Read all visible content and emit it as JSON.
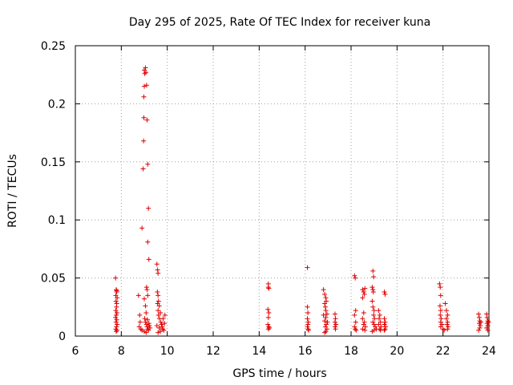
{
  "chart_data": {
    "type": "scatter",
    "title": "Day 295 of 2025, Rate Of TEC Index for receiver kuna",
    "xlabel": "GPS time / hours",
    "ylabel": "ROTI / TECUs",
    "xlim": [
      6,
      24
    ],
    "ylim": [
      0,
      0.25
    ],
    "xticks": [
      6,
      8,
      10,
      12,
      14,
      16,
      18,
      20,
      22,
      24
    ],
    "xtick_labels": [
      "6",
      "8",
      "10",
      "12",
      "14",
      "16",
      "18",
      "20",
      "22",
      "24"
    ],
    "yticks": [
      0,
      0.05,
      0.1,
      0.15,
      0.2,
      0.25
    ],
    "ytick_labels": [
      "0",
      "0.05",
      "0.1",
      "0.15",
      "0.2",
      "0.25"
    ],
    "grid": true,
    "marker": "plus",
    "color": "#e00000",
    "series": [
      {
        "points": [
          [
            7.75,
            0.05
          ],
          [
            7.78,
            0.04
          ],
          [
            7.8,
            0.038
          ],
          [
            7.76,
            0.035
          ],
          [
            7.82,
            0.033
          ],
          [
            7.77,
            0.03
          ],
          [
            7.8,
            0.028
          ],
          [
            7.79,
            0.025
          ],
          [
            7.76,
            0.022
          ],
          [
            7.81,
            0.02
          ],
          [
            7.78,
            0.018
          ],
          [
            7.75,
            0.016
          ],
          [
            7.8,
            0.014
          ],
          [
            7.77,
            0.012
          ],
          [
            7.82,
            0.01
          ],
          [
            7.79,
            0.008
          ],
          [
            7.76,
            0.006
          ],
          [
            7.81,
            0.005
          ],
          [
            7.78,
            0.004
          ],
          [
            7.8,
            0.039
          ],
          [
            8.75,
            0.035
          ],
          [
            8.8,
            0.018
          ],
          [
            8.82,
            0.012
          ],
          [
            8.78,
            0.008
          ],
          [
            8.85,
            0.006
          ],
          [
            8.9,
            0.005
          ],
          [
            8.9,
            0.093
          ],
          [
            8.95,
            0.144
          ],
          [
            8.97,
            0.168
          ],
          [
            8.98,
            0.188
          ],
          [
            8.98,
            0.206
          ],
          [
            9.0,
            0.215
          ],
          [
            9.02,
            0.226
          ],
          [
            9.0,
            0.229
          ],
          [
            9.05,
            0.231
          ],
          [
            9.07,
            0.227
          ],
          [
            9.1,
            0.216
          ],
          [
            9.12,
            0.186
          ],
          [
            9.15,
            0.148
          ],
          [
            9.18,
            0.11
          ],
          [
            9.15,
            0.081
          ],
          [
            9.2,
            0.066
          ],
          [
            9.0,
            0.032
          ],
          [
            9.05,
            0.026
          ],
          [
            9.08,
            0.02
          ],
          [
            9.1,
            0.042
          ],
          [
            9.12,
            0.04
          ],
          [
            9.15,
            0.035
          ],
          [
            9.02,
            0.015
          ],
          [
            9.05,
            0.012
          ],
          [
            9.1,
            0.01
          ],
          [
            9.12,
            0.008
          ],
          [
            9.15,
            0.006
          ],
          [
            9.18,
            0.005
          ],
          [
            9.2,
            0.011
          ],
          [
            9.22,
            0.009
          ],
          [
            9.25,
            0.007
          ],
          [
            9.0,
            0.004
          ],
          [
            9.08,
            0.003
          ],
          [
            9.14,
            0.014
          ],
          [
            9.55,
            0.062
          ],
          [
            9.58,
            0.057
          ],
          [
            9.6,
            0.054
          ],
          [
            9.57,
            0.038
          ],
          [
            9.6,
            0.035
          ],
          [
            9.62,
            0.03
          ],
          [
            9.58,
            0.028
          ],
          [
            9.65,
            0.026
          ],
          [
            9.6,
            0.022
          ],
          [
            9.62,
            0.018
          ],
          [
            9.66,
            0.015
          ],
          [
            9.7,
            0.02
          ],
          [
            9.72,
            0.012
          ],
          [
            9.75,
            0.01
          ],
          [
            9.78,
            0.008
          ],
          [
            9.8,
            0.006
          ],
          [
            9.82,
            0.015
          ],
          [
            9.85,
            0.005
          ],
          [
            9.7,
            0.004
          ],
          [
            9.6,
            0.003
          ],
          [
            9.65,
            0.007
          ],
          [
            9.55,
            0.009
          ],
          [
            9.88,
            0.011
          ],
          [
            9.9,
            0.018
          ],
          [
            14.4,
            0.045
          ],
          [
            14.4,
            0.042
          ],
          [
            14.42,
            0.041
          ],
          [
            14.38,
            0.023
          ],
          [
            14.42,
            0.02
          ],
          [
            14.4,
            0.016
          ],
          [
            14.38,
            0.01
          ],
          [
            14.42,
            0.008
          ],
          [
            14.4,
            0.006
          ],
          [
            14.44,
            0.007
          ],
          [
            16.1,
            0.059
          ],
          [
            16.1,
            0.025
          ],
          [
            16.12,
            0.02
          ],
          [
            16.1,
            0.015
          ],
          [
            16.14,
            0.012
          ],
          [
            16.12,
            0.01
          ],
          [
            16.1,
            0.008
          ],
          [
            16.13,
            0.006
          ],
          [
            16.15,
            0.005
          ],
          [
            16.8,
            0.04
          ],
          [
            16.85,
            0.036
          ],
          [
            16.9,
            0.033
          ],
          [
            16.92,
            0.03
          ],
          [
            16.85,
            0.028
          ],
          [
            16.88,
            0.025
          ],
          [
            16.9,
            0.022
          ],
          [
            16.95,
            0.019
          ],
          [
            16.9,
            0.016
          ],
          [
            16.85,
            0.013
          ],
          [
            16.92,
            0.01
          ],
          [
            16.88,
            0.008
          ],
          [
            16.95,
            0.006
          ],
          [
            16.9,
            0.004
          ],
          [
            16.85,
            0.003
          ],
          [
            16.97,
            0.012
          ],
          [
            16.8,
            0.018
          ],
          [
            17.3,
            0.019
          ],
          [
            17.32,
            0.015
          ],
          [
            17.3,
            0.012
          ],
          [
            17.34,
            0.01
          ],
          [
            17.3,
            0.008
          ],
          [
            17.32,
            0.006
          ],
          [
            18.15,
            0.052
          ],
          [
            18.18,
            0.05
          ],
          [
            18.2,
            0.022
          ],
          [
            18.15,
            0.018
          ],
          [
            18.2,
            0.012
          ],
          [
            18.15,
            0.008
          ],
          [
            18.18,
            0.006
          ],
          [
            18.22,
            0.005
          ],
          [
            18.5,
            0.04
          ],
          [
            18.55,
            0.038
          ],
          [
            18.58,
            0.036
          ],
          [
            18.5,
            0.033
          ],
          [
            18.6,
            0.041
          ],
          [
            18.55,
            0.02
          ],
          [
            18.5,
            0.015
          ],
          [
            18.58,
            0.012
          ],
          [
            18.55,
            0.01
          ],
          [
            18.62,
            0.008
          ],
          [
            18.5,
            0.006
          ],
          [
            18.6,
            0.005
          ],
          [
            18.95,
            0.056
          ],
          [
            18.98,
            0.051
          ],
          [
            18.92,
            0.042
          ],
          [
            18.95,
            0.04
          ],
          [
            18.97,
            0.038
          ],
          [
            18.92,
            0.03
          ],
          [
            18.95,
            0.025
          ],
          [
            19.0,
            0.022
          ],
          [
            18.98,
            0.018
          ],
          [
            19.02,
            0.015
          ],
          [
            18.95,
            0.012
          ],
          [
            19.0,
            0.01
          ],
          [
            19.05,
            0.008
          ],
          [
            19.1,
            0.006
          ],
          [
            19.0,
            0.005
          ],
          [
            18.92,
            0.004
          ],
          [
            19.2,
            0.022
          ],
          [
            19.25,
            0.018
          ],
          [
            19.22,
            0.015
          ],
          [
            19.28,
            0.012
          ],
          [
            19.2,
            0.01
          ],
          [
            19.3,
            0.008
          ],
          [
            19.25,
            0.006
          ],
          [
            19.28,
            0.005
          ],
          [
            19.45,
            0.038
          ],
          [
            19.48,
            0.036
          ],
          [
            19.45,
            0.015
          ],
          [
            19.48,
            0.012
          ],
          [
            19.45,
            0.01
          ],
          [
            19.5,
            0.008
          ],
          [
            19.48,
            0.006
          ],
          [
            19.45,
            0.005
          ],
          [
            21.85,
            0.045
          ],
          [
            21.88,
            0.042
          ],
          [
            21.9,
            0.035
          ],
          [
            21.87,
            0.026
          ],
          [
            21.9,
            0.022
          ],
          [
            21.88,
            0.018
          ],
          [
            21.92,
            0.015
          ],
          [
            21.9,
            0.012
          ],
          [
            21.95,
            0.01
          ],
          [
            21.9,
            0.008
          ],
          [
            22.0,
            0.006
          ],
          [
            22.05,
            0.005
          ],
          [
            22.1,
            0.028
          ],
          [
            22.15,
            0.022
          ],
          [
            22.2,
            0.018
          ],
          [
            22.15,
            0.015
          ],
          [
            22.2,
            0.012
          ],
          [
            22.18,
            0.01
          ],
          [
            22.22,
            0.008
          ],
          [
            22.2,
            0.006
          ],
          [
            23.55,
            0.019
          ],
          [
            23.58,
            0.016
          ],
          [
            23.6,
            0.013
          ],
          [
            23.58,
            0.011
          ],
          [
            23.62,
            0.009
          ],
          [
            23.6,
            0.007
          ],
          [
            23.55,
            0.005
          ],
          [
            23.65,
            0.012
          ],
          [
            23.9,
            0.019
          ],
          [
            23.92,
            0.016
          ],
          [
            23.95,
            0.013
          ],
          [
            23.92,
            0.011
          ],
          [
            23.95,
            0.009
          ],
          [
            23.9,
            0.007
          ],
          [
            23.95,
            0.005
          ],
          [
            23.98,
            0.012
          ]
        ]
      }
    ]
  }
}
